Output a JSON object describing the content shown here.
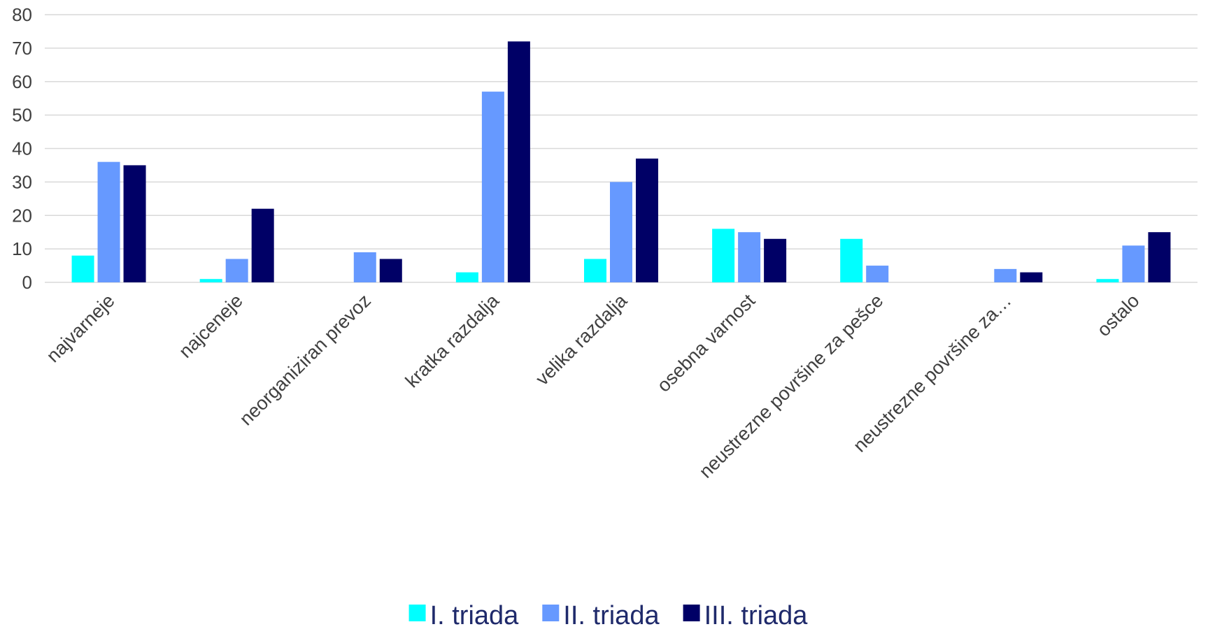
{
  "chart_data": {
    "type": "bar",
    "title": "",
    "xlabel": "",
    "ylabel": "",
    "ylim": [
      0,
      80
    ],
    "yticks": [
      0,
      10,
      20,
      30,
      40,
      50,
      60,
      70,
      80
    ],
    "grid": true,
    "legend_position": "bottom",
    "categories": [
      "najvarneje",
      "najceneje",
      "neorganiziran prevoz",
      "kratka razdalja",
      "velika razdalja",
      "osebna varnost",
      "neustrezne površine za pešce",
      "neustrezne površine za…",
      "ostalo"
    ],
    "series": [
      {
        "name": "I. triada",
        "color": "#00ffff",
        "values": [
          8,
          1,
          0,
          3,
          7,
          16,
          13,
          0,
          1
        ]
      },
      {
        "name": "II. triada",
        "color": "#6699ff",
        "values": [
          36,
          7,
          9,
          57,
          30,
          15,
          5,
          4,
          11
        ]
      },
      {
        "name": "III. triada",
        "color": "#000066",
        "values": [
          35,
          22,
          7,
          72,
          37,
          13,
          0,
          3,
          15
        ]
      }
    ]
  }
}
